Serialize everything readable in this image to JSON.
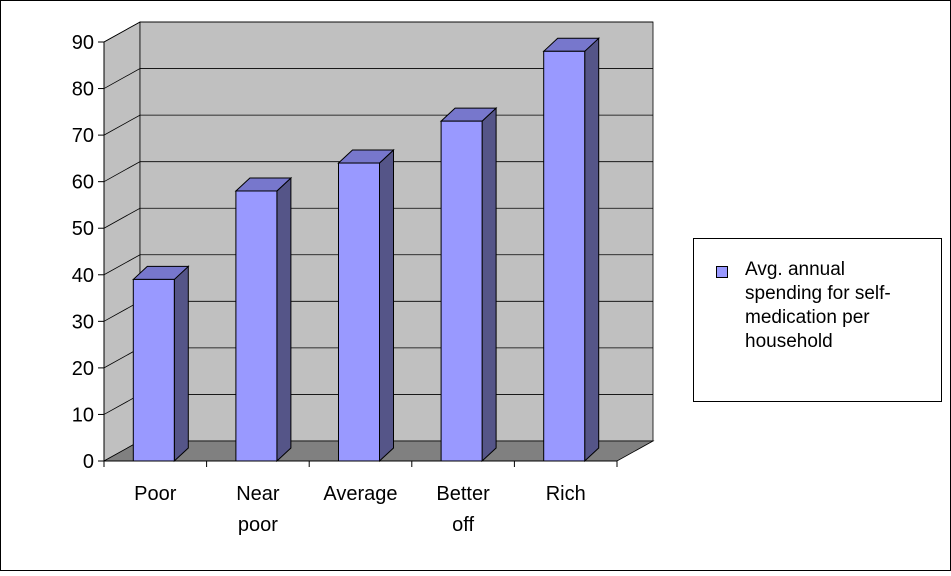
{
  "chart_data": {
    "type": "bar",
    "style": "3d-column",
    "categories": [
      "Poor",
      "Near poor",
      "Average",
      "Better off",
      "Rich"
    ],
    "category_lines": [
      [
        "Poor"
      ],
      [
        "Near",
        "poor"
      ],
      [
        "Average"
      ],
      [
        "Better",
        "off"
      ],
      [
        "Rich"
      ]
    ],
    "series": [
      {
        "name": "Avg. annual spending for self-medication per household",
        "values": [
          39,
          58,
          64,
          73,
          88
        ]
      }
    ],
    "ylim": [
      0,
      90
    ],
    "yticks": [
      0,
      10,
      20,
      30,
      40,
      50,
      60,
      70,
      80,
      90
    ],
    "xlabel": "",
    "ylabel": "",
    "grid": true,
    "legend_position": "right",
    "colors": {
      "bar_front": "#9999ff",
      "bar_side": "#555588",
      "bar_top": "#7777cc",
      "wall": "#c0c0c0",
      "floor": "#808080"
    }
  },
  "legend": {
    "label": "Avg. annual spending for self-medication per household",
    "label_lines": [
      "Avg. annual",
      "spending for self-",
      "medication per",
      "household"
    ]
  }
}
